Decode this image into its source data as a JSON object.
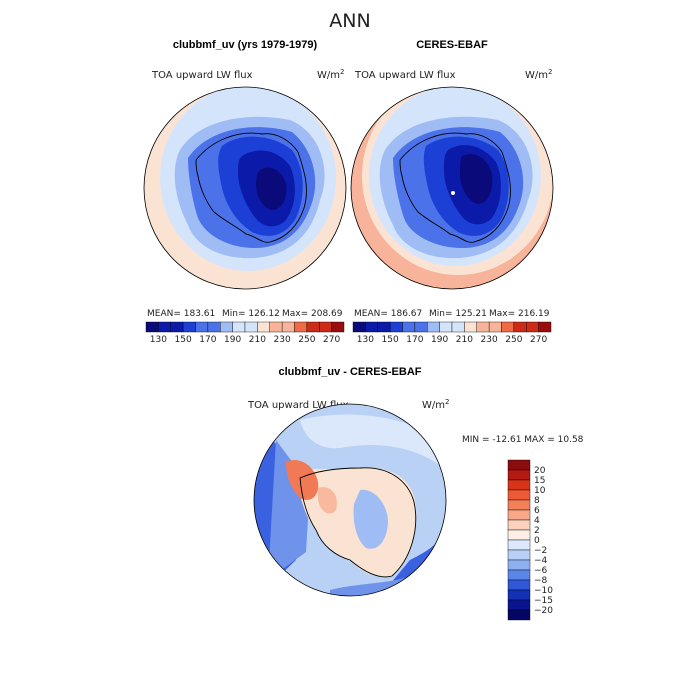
{
  "page_title": "ANN",
  "colors": {
    "c130": "#0a0a7a",
    "c150": "#0b1aa8",
    "c170": "#1c3fd6",
    "c190": "#4b72e8",
    "c200": "#9fbdf4",
    "c205": "#d4e5fb",
    "c215": "#fbe3d4",
    "c230": "#f7b49a",
    "c250": "#f06b45",
    "c270": "#cc2b17",
    "c290": "#9a0d0d",
    "border": "#000000"
  },
  "chart_data": [
    {
      "type": "heatmap",
      "projection": "south polar stereographic",
      "title": "clubbmf_uv (yrs 1979-1979)",
      "variable": "TOA upward LW flux",
      "units": "W/m",
      "units_exp": "2",
      "stats": {
        "mean": "183.61",
        "min": "126.12",
        "max": "208.69"
      },
      "stats_text": {
        "mean": "MEAN= 183.61",
        "min": "Min= 126.12",
        "max": "Max= 208.69"
      },
      "colorbar_ticks": [
        "130",
        "150",
        "170",
        "190",
        "210",
        "230",
        "250",
        "270"
      ],
      "colorbar_levels": [
        120,
        130,
        140,
        150,
        160,
        170,
        180,
        190,
        200,
        210,
        220,
        230,
        240,
        250,
        260,
        270,
        280
      ]
    },
    {
      "type": "heatmap",
      "projection": "south polar stereographic",
      "title": "CERES-EBAF",
      "variable": "TOA upward LW flux",
      "units": "W/m",
      "units_exp": "2",
      "stats": {
        "mean": "186.67",
        "min": "125.21",
        "max": "216.19"
      },
      "stats_text": {
        "mean": "MEAN= 186.67",
        "min": "Min= 125.21",
        "max": "Max= 216.19"
      },
      "colorbar_ticks": [
        "130",
        "150",
        "170",
        "190",
        "210",
        "230",
        "250",
        "270"
      ],
      "colorbar_levels": [
        120,
        130,
        140,
        150,
        160,
        170,
        180,
        190,
        200,
        210,
        220,
        230,
        240,
        250,
        260,
        270,
        280
      ]
    },
    {
      "type": "heatmap",
      "projection": "south polar stereographic",
      "title": "clubbmf_uv - CERES-EBAF",
      "variable": "TOA upward LW flux",
      "units": "W/m",
      "units_exp": "2",
      "stats": {
        "min": "-12.61",
        "max": "10.58"
      },
      "stats_text": "MIN = -12.61 MAX =  10.58",
      "colorbar_labels": [
        "20",
        "15",
        "10",
        "8",
        "6",
        "4",
        "2",
        "0",
        "-2",
        "-4",
        "-6",
        "-8",
        "-10",
        "-15",
        "-20"
      ]
    }
  ]
}
